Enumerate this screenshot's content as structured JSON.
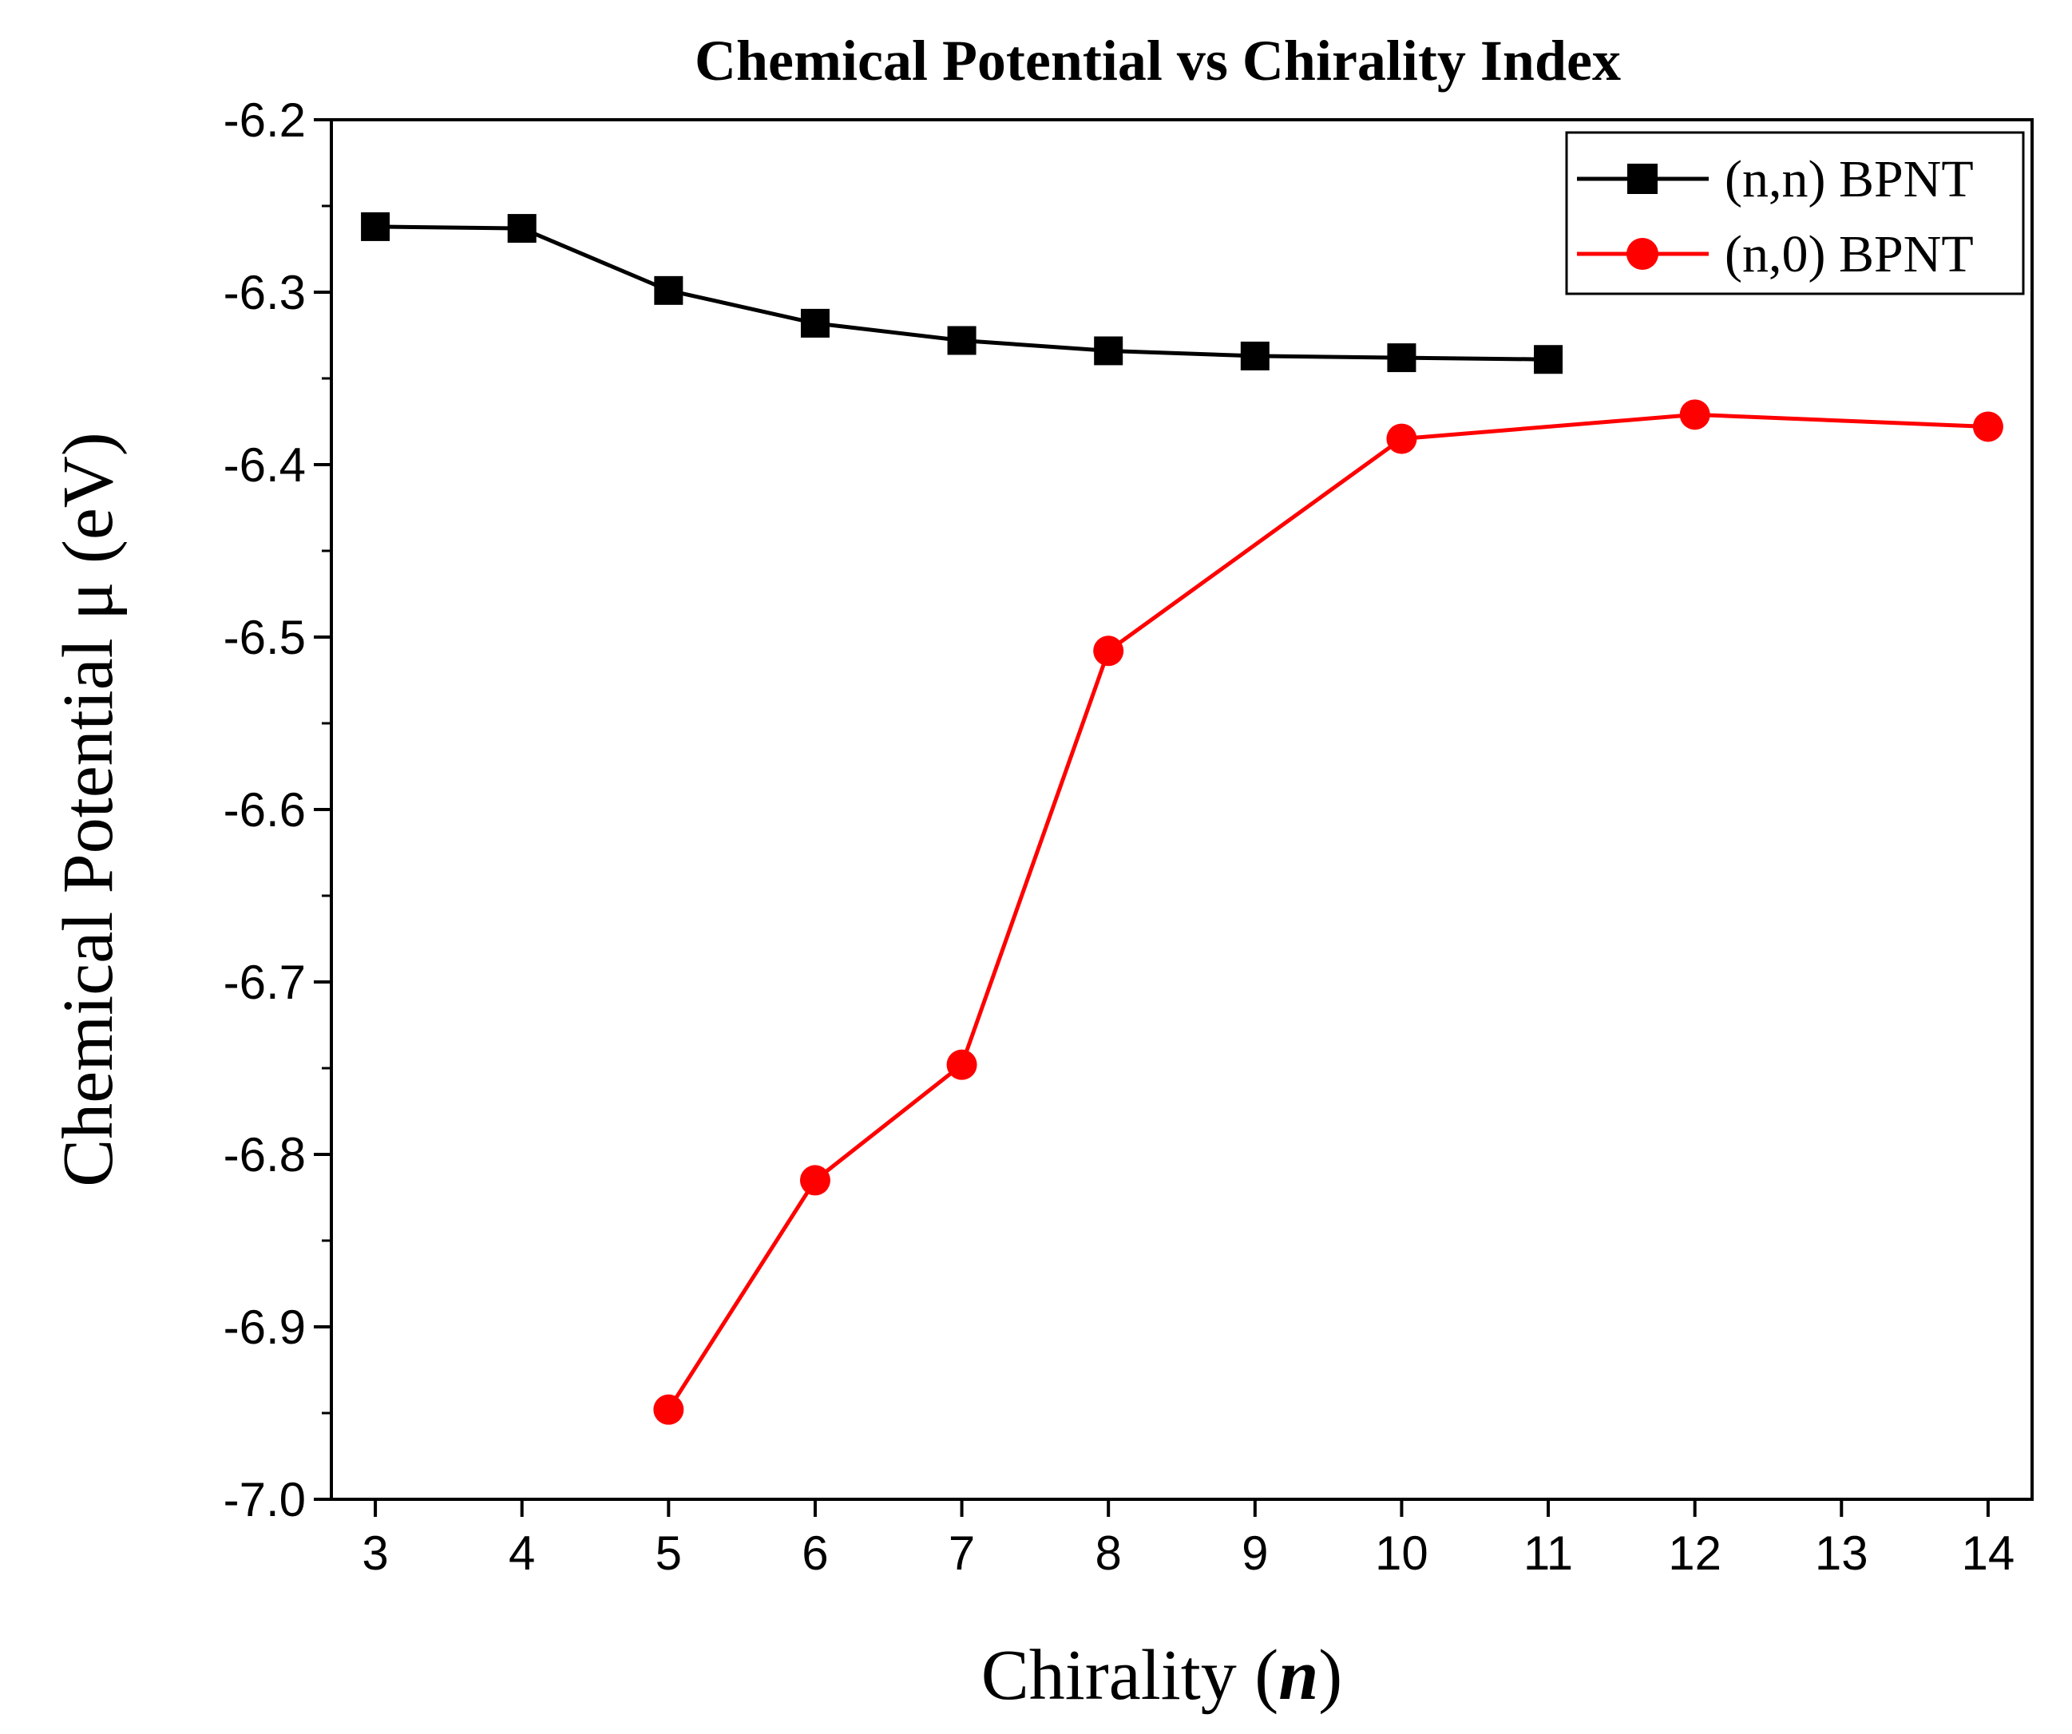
{
  "chart_data": {
    "type": "line",
    "title": "Chemical Potential vs Chirality Index",
    "xlabel_prefix": "Chirality (",
    "xlabel_var": "n",
    "xlabel_suffix": ")",
    "ylabel": "Chemical Potential μ (eV)",
    "xlim": [
      2.7,
      14.3
    ],
    "ylim": [
      -7.0,
      -6.2
    ],
    "x_ticks": [
      3,
      4,
      5,
      6,
      7,
      8,
      9,
      10,
      11,
      12,
      13,
      14
    ],
    "x_tick_labels": [
      "3",
      "4",
      "5",
      "6",
      "7",
      "8",
      "9",
      "10",
      "11",
      "12",
      "13",
      "14"
    ],
    "y_ticks": [
      -6.2,
      -6.3,
      -6.4,
      -6.5,
      -6.6,
      -6.7,
      -6.8,
      -6.9,
      -7.0
    ],
    "y_tick_labels": [
      "-6.2",
      "-6.3",
      "-6.4",
      "-6.5",
      "-6.6",
      "-6.7",
      "-6.8",
      "-6.9",
      "-7.0"
    ],
    "legend_position": "top-right",
    "series": [
      {
        "name": "(n,n) BPNT",
        "color": "#000000",
        "marker": "square",
        "x": [
          3,
          4,
          5,
          6,
          7,
          8,
          9,
          10,
          11
        ],
        "values": [
          -6.262,
          -6.263,
          -6.299,
          -6.318,
          -6.328,
          -6.334,
          -6.337,
          -6.338,
          -6.339
        ]
      },
      {
        "name": "(n,0) BPNT",
        "color": "#ff0000",
        "marker": "circle",
        "x": [
          5,
          6,
          7,
          8,
          10,
          12,
          14
        ],
        "values": [
          -6.948,
          -6.815,
          -6.748,
          -6.508,
          -6.385,
          -6.371,
          -6.378
        ]
      }
    ]
  }
}
